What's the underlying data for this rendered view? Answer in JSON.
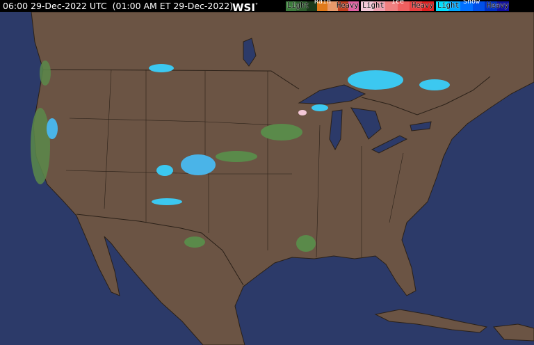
{
  "header": {
    "timestamp": "06:00 29-Dec-2022 UTC  (01:00 AM ET 29-Dec-2022)",
    "logo": "WSI",
    "logo_mark": "°"
  },
  "legend": [
    {
      "type": "Rain",
      "light": "Light",
      "heavy": "Heavy",
      "colors": [
        "#3c7a3c",
        "#2e5e2e",
        "#1a3a1a",
        "#e07a1a",
        "#e89a6a",
        "#c04020",
        "#e060a0"
      ]
    },
    {
      "type": "Ice",
      "light": "Light",
      "heavy": "Heavy",
      "colors": [
        "#f4c8d8",
        "#f0a0b0",
        "#f08080",
        "#f06060",
        "#e84040",
        "#e02020"
      ]
    },
    {
      "type": "Snow",
      "light": "Light",
      "heavy": "Heavy",
      "colors": [
        "#00e0ff",
        "#00a8ff",
        "#0070ff",
        "#0050e8",
        "#0030c0",
        "#1010a0"
      ]
    }
  ],
  "colors": {
    "ocean": "#2c3a69",
    "land": "#6b5444",
    "border": "#2a2018",
    "lake": "#2c3a69"
  }
}
